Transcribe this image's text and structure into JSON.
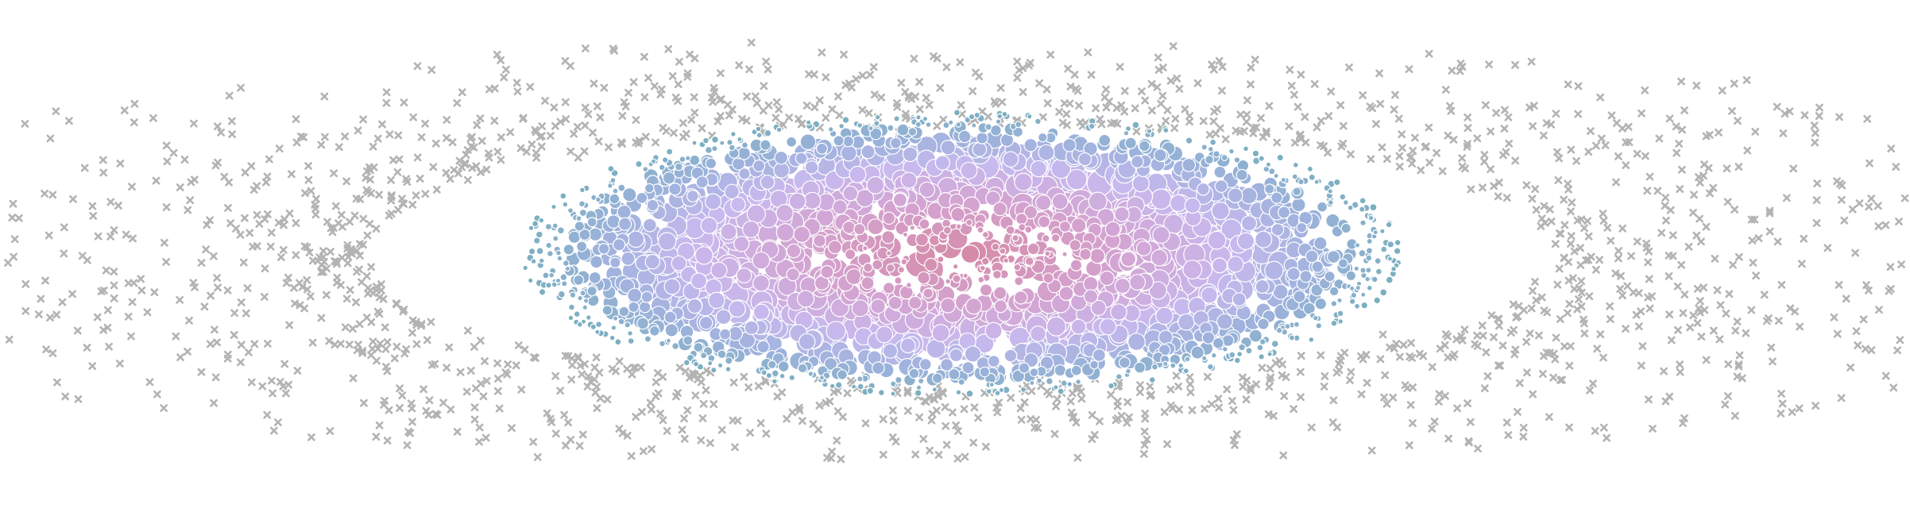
{
  "chart_data": {
    "type": "scatter",
    "title": "",
    "xlabel": "",
    "ylabel": "",
    "grid": false,
    "axes_visible": false,
    "legend": "none",
    "xlim": [
      -1.0,
      1.0
    ],
    "ylim": [
      -1.0,
      1.0
    ],
    "description_of_structure": "",
    "series": [
      {
        "marker": "x",
        "color": "#b3b3b3",
        "count": 1700,
        "radial_range": [
          1.0,
          1.95
        ]
      },
      {
        "marker": "circle",
        "color_stops": [
          {
            "r": 0.0,
            "color": "#d58aa6"
          },
          {
            "r": 0.35,
            "color": "#d4a3d0"
          },
          {
            "r": 0.62,
            "color": "#c8b9ee"
          },
          {
            "r": 0.82,
            "color": "#9db2dc"
          },
          {
            "r": 1.0,
            "color": "#7aafbf"
          }
        ],
        "count": 2200,
        "radial_range": [
          0.0,
          1.0
        ],
        "size_range": [
          0.006,
          0.02
        ]
      }
    ]
  }
}
